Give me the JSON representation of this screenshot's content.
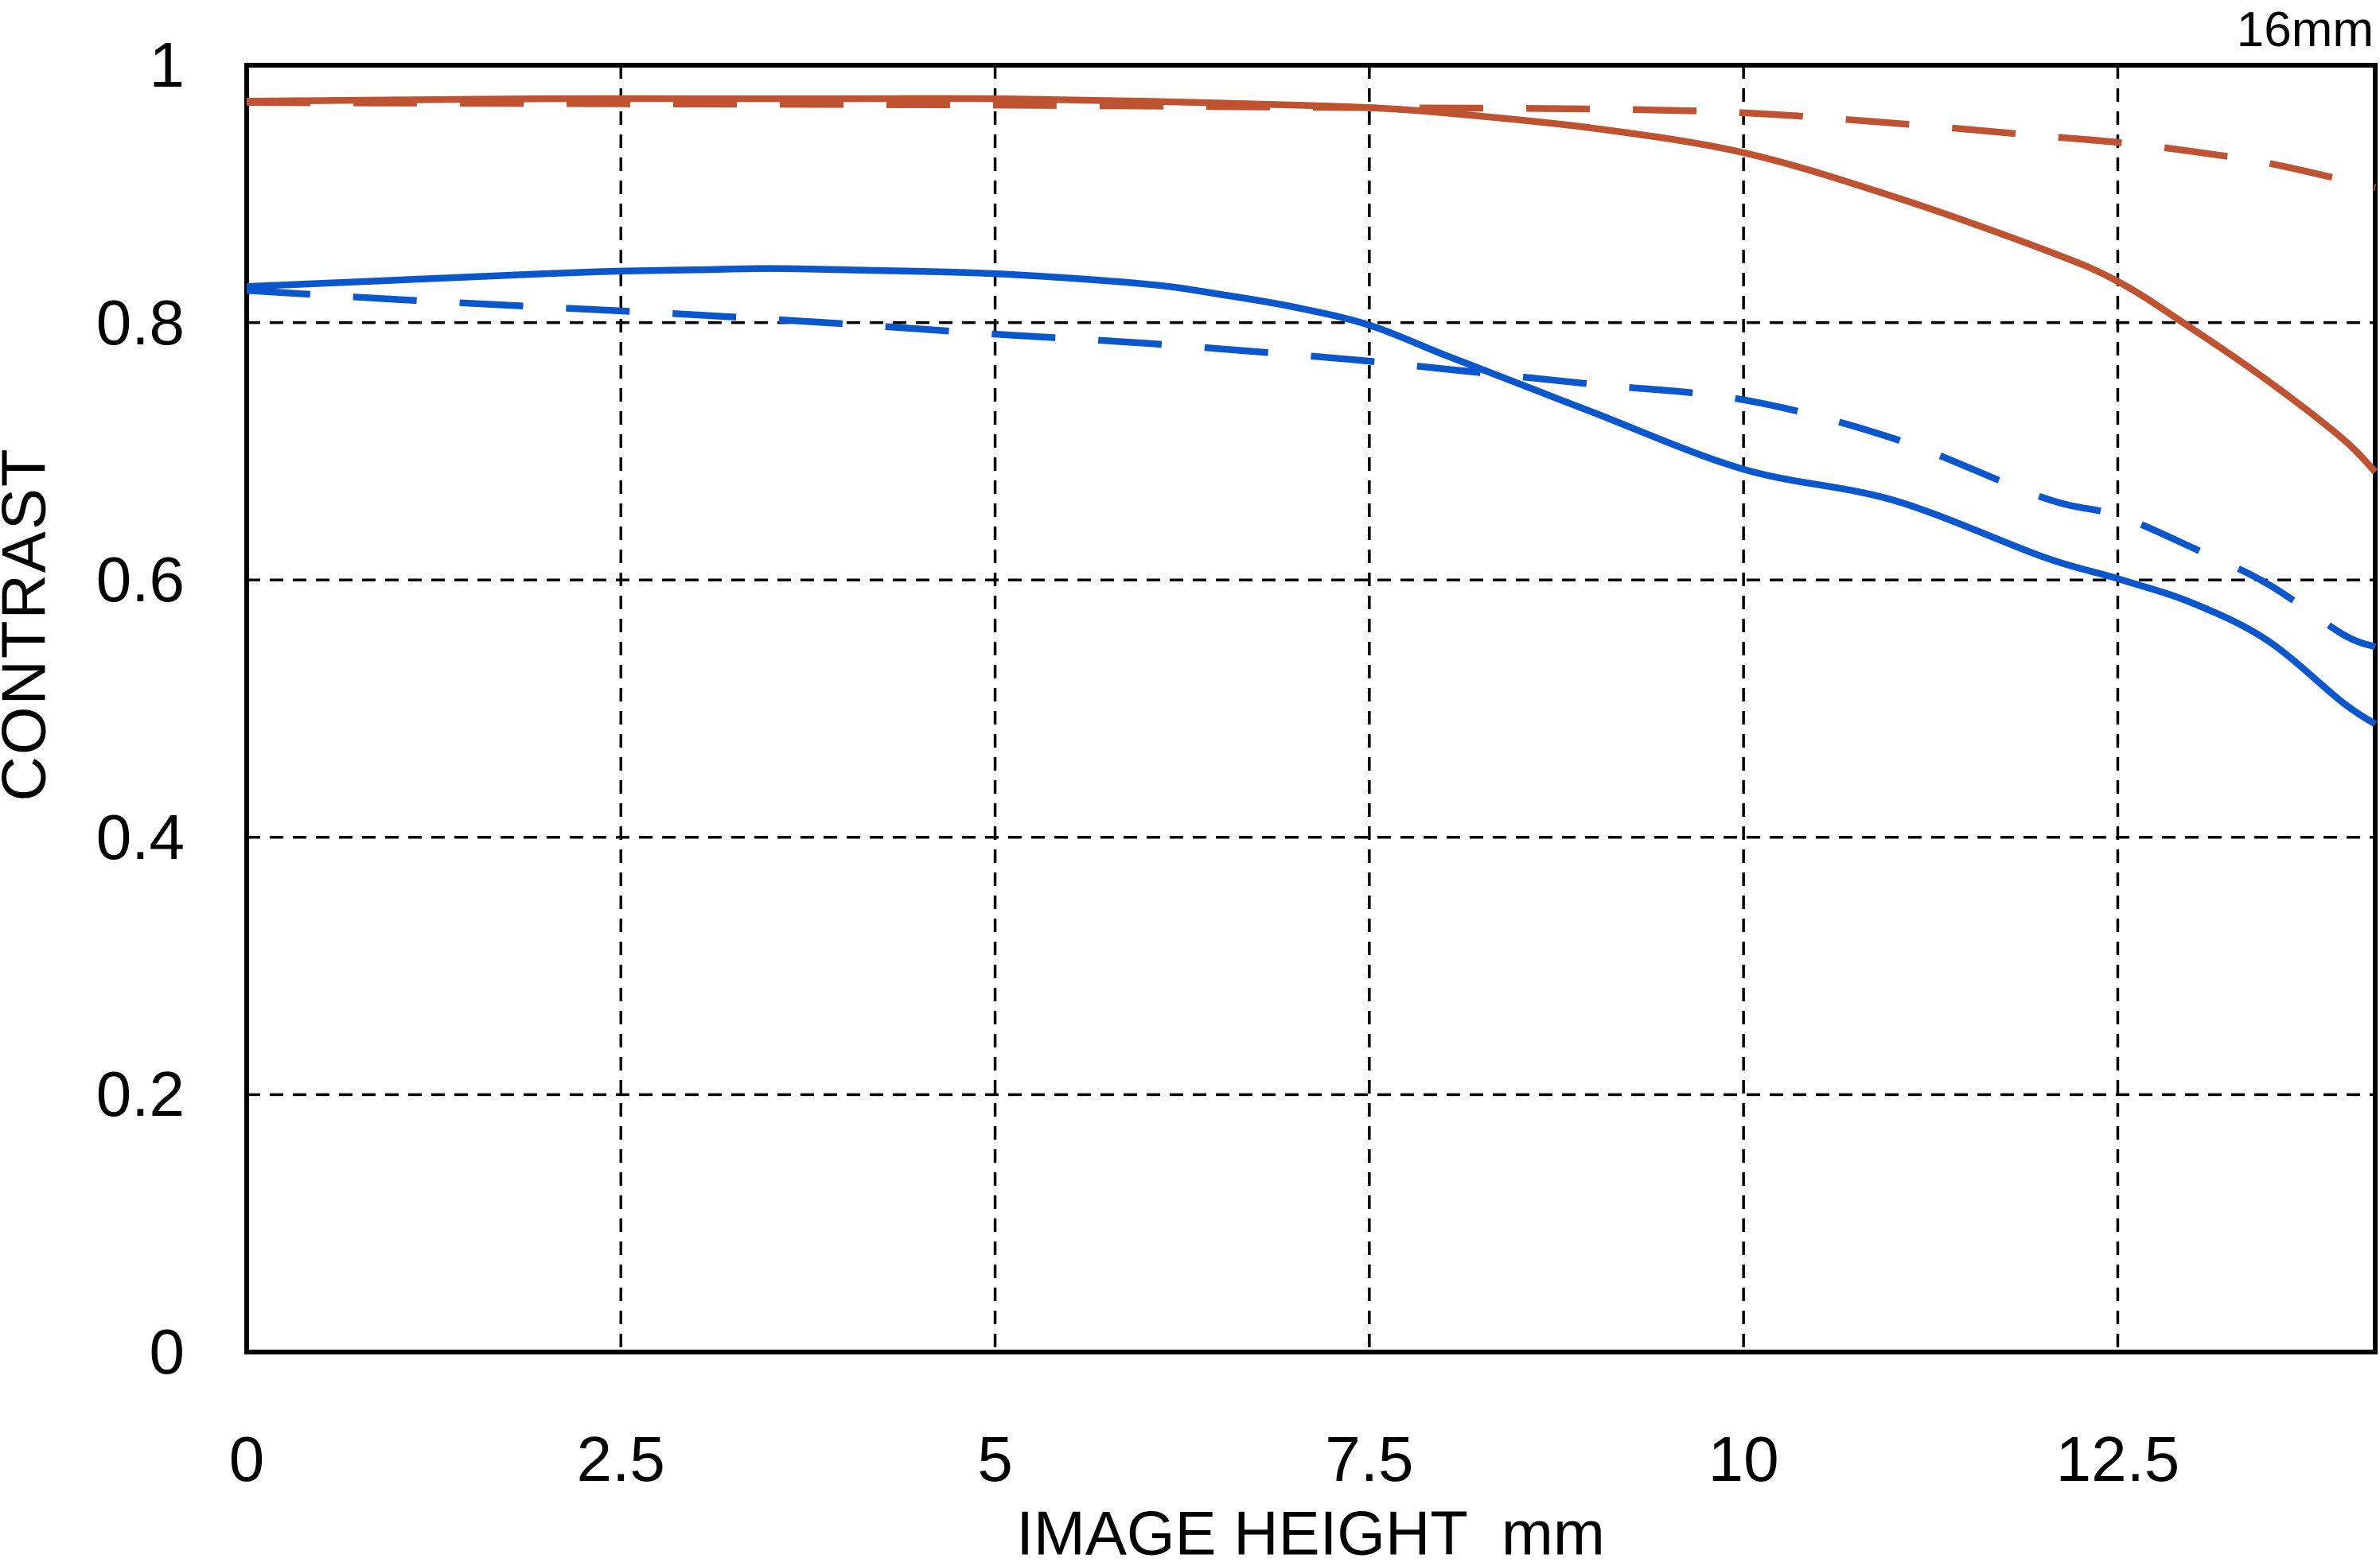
{
  "title": "16mm",
  "colors": {
    "red": "#bf5231",
    "blue": "#0a56cc",
    "grid": "#000000",
    "frame": "#000000"
  },
  "chart_data": {
    "type": "line",
    "title": "16mm",
    "xlabel": "IMAGE HEIGHT  mm",
    "ylabel": "CONTRAST",
    "xlim": [
      0,
      14.22
    ],
    "ylim": [
      0,
      1
    ],
    "grid": "dashed-both-axes",
    "legend": "none",
    "x_ticks": [
      {
        "v": 0,
        "label": "0"
      },
      {
        "v": 2.5,
        "label": "2.5"
      },
      {
        "v": 5,
        "label": "5"
      },
      {
        "v": 7.5,
        "label": "7.5"
      },
      {
        "v": 10,
        "label": "10"
      },
      {
        "v": 12.5,
        "label": "12.5"
      }
    ],
    "y_ticks": [
      {
        "v": 0,
        "label": "0"
      },
      {
        "v": 0.2,
        "label": "0.2"
      },
      {
        "v": 0.4,
        "label": "0.4"
      },
      {
        "v": 0.6,
        "label": "0.6"
      },
      {
        "v": 0.8,
        "label": "0.8"
      },
      {
        "v": 1,
        "label": "1"
      }
    ],
    "series": [
      {
        "name": "red-solid",
        "color": "#bf5231",
        "dashed": false,
        "x": [
          0,
          1,
          2,
          3,
          4,
          5,
          6,
          7,
          7.5,
          8,
          9,
          10,
          11,
          12,
          12.5,
          13,
          13.5,
          14,
          14.22
        ],
        "y": [
          0.972,
          0.973,
          0.974,
          0.974,
          0.974,
          0.974,
          0.972,
          0.969,
          0.967,
          0.963,
          0.951,
          0.932,
          0.898,
          0.857,
          0.832,
          0.795,
          0.755,
          0.71,
          0.684
        ]
      },
      {
        "name": "red-dashed",
        "color": "#bf5231",
        "dashed": true,
        "x": [
          0,
          2.5,
          5,
          7.5,
          9,
          10,
          11,
          12,
          12.5,
          13,
          13.5,
          14,
          14.22
        ],
        "y": [
          0.971,
          0.97,
          0.969,
          0.967,
          0.966,
          0.963,
          0.955,
          0.945,
          0.94,
          0.933,
          0.924,
          0.911,
          0.905
        ]
      },
      {
        "name": "blue-solid",
        "color": "#0a56cc",
        "dashed": false,
        "x": [
          0,
          1,
          2,
          2.5,
          3,
          3.5,
          4,
          5,
          6,
          6.5,
          7,
          7.5,
          8,
          8.6,
          9,
          10,
          11,
          12,
          12.5,
          13,
          13.5,
          14,
          14.22
        ],
        "y": [
          0.828,
          0.833,
          0.838,
          0.84,
          0.841,
          0.842,
          0.841,
          0.838,
          0.83,
          0.822,
          0.812,
          0.798,
          0.775,
          0.748,
          0.73,
          0.686,
          0.662,
          0.618,
          0.601,
          0.582,
          0.553,
          0.505,
          0.488
        ]
      },
      {
        "name": "blue-dashed",
        "color": "#0a56cc",
        "dashed": true,
        "x": [
          0,
          1,
          2,
          3,
          4,
          5,
          6,
          7,
          7.5,
          8,
          9,
          10,
          11,
          12,
          12.5,
          13,
          13.5,
          14,
          14.22
        ],
        "y": [
          0.825,
          0.818,
          0.812,
          0.806,
          0.799,
          0.791,
          0.784,
          0.775,
          0.77,
          0.764,
          0.752,
          0.74,
          0.71,
          0.664,
          0.65,
          0.625,
          0.597,
          0.558,
          0.548
        ]
      }
    ]
  }
}
